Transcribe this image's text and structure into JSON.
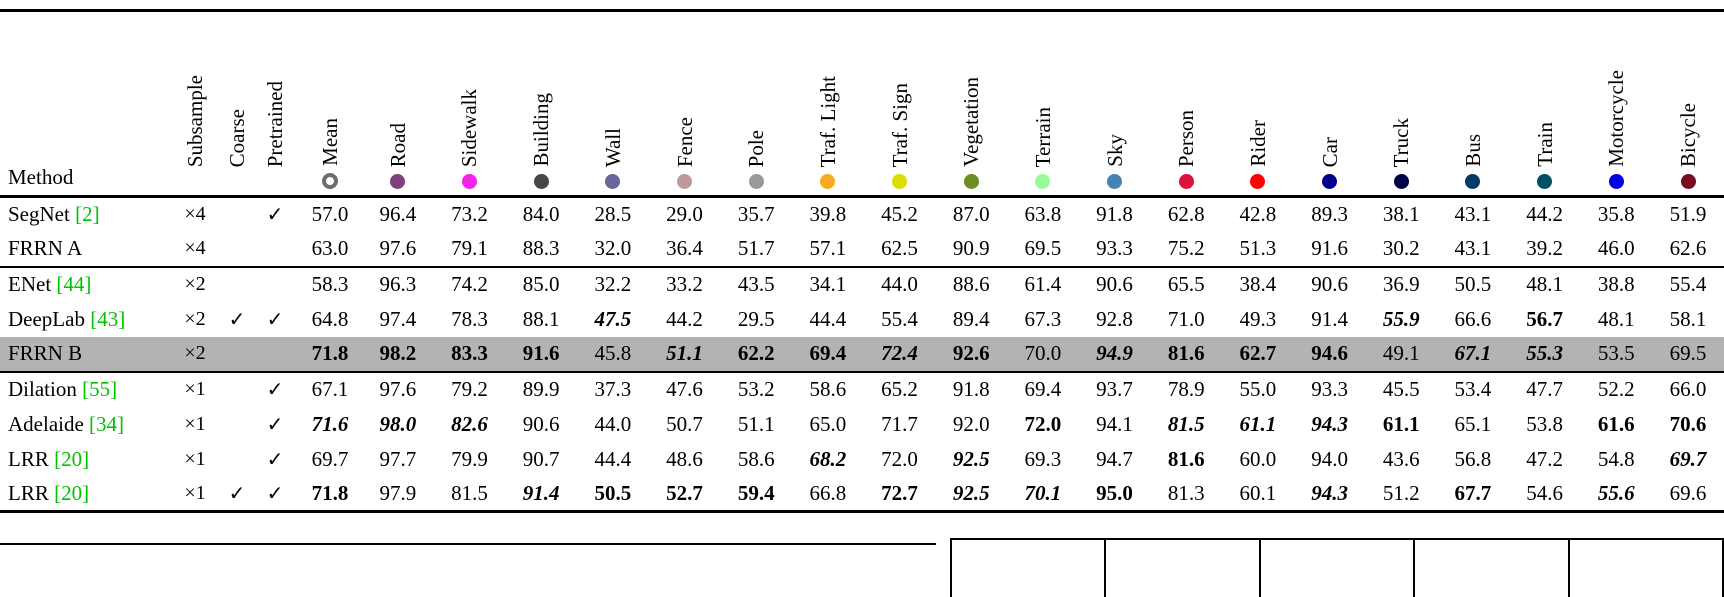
{
  "page": {
    "background": "#ffffff"
  },
  "table": {
    "method_header": "Method",
    "option_columns": [
      "Subsample",
      "Coarse",
      "Pretrained"
    ],
    "mean_column": {
      "label": "Mean",
      "icon": "ring"
    },
    "check_glyph": "✓",
    "colors": {
      "citation_green": "#00C300",
      "highlight_gray": "#b3b3b3",
      "rule_black": "#000000"
    },
    "class_columns": [
      {
        "label": "Road",
        "color": "#804080"
      },
      {
        "label": "Sidewalk",
        "color": "#F423E8"
      },
      {
        "label": "Building",
        "color": "#464646"
      },
      {
        "label": "Wall",
        "color": "#66669C"
      },
      {
        "label": "Fence",
        "color": "#BE9999"
      },
      {
        "label": "Pole",
        "color": "#999999"
      },
      {
        "label": "Traf. Light",
        "color": "#FAAA1E"
      },
      {
        "label": "Traf. Sign",
        "color": "#DCDC00"
      },
      {
        "label": "Vegetation",
        "color": "#6B8E23"
      },
      {
        "label": "Terrain",
        "color": "#98FB98"
      },
      {
        "label": "Sky",
        "color": "#4682B4"
      },
      {
        "label": "Person",
        "color": "#DC143C"
      },
      {
        "label": "Rider",
        "color": "#FF0000"
      },
      {
        "label": "Car",
        "color": "#00008E"
      },
      {
        "label": "Truck",
        "color": "#000046"
      },
      {
        "label": "Bus",
        "color": "#003C64"
      },
      {
        "label": "Train",
        "color": "#005064"
      },
      {
        "label": "Motorcycle",
        "color": "#0000E6"
      },
      {
        "label": "Bicycle",
        "color": "#770B20"
      }
    ],
    "rows": [
      {
        "method": "SegNet",
        "cite": "[2]",
        "subsample": "×4",
        "coarse": false,
        "pretrained": true,
        "highlight": false,
        "group_start": false,
        "mean": [
          "57.0",
          ""
        ],
        "scores": [
          [
            "96.4",
            ""
          ],
          [
            "73.2",
            ""
          ],
          [
            "84.0",
            ""
          ],
          [
            "28.5",
            ""
          ],
          [
            "29.0",
            ""
          ],
          [
            "35.7",
            ""
          ],
          [
            "39.8",
            ""
          ],
          [
            "45.2",
            ""
          ],
          [
            "87.0",
            ""
          ],
          [
            "63.8",
            ""
          ],
          [
            "91.8",
            ""
          ],
          [
            "62.8",
            ""
          ],
          [
            "42.8",
            ""
          ],
          [
            "89.3",
            ""
          ],
          [
            "38.1",
            ""
          ],
          [
            "43.1",
            ""
          ],
          [
            "44.2",
            ""
          ],
          [
            "35.8",
            ""
          ],
          [
            "51.9",
            ""
          ]
        ]
      },
      {
        "method": "FRRN A",
        "cite": "",
        "subsample": "×4",
        "coarse": false,
        "pretrained": false,
        "highlight": false,
        "group_start": false,
        "mean": [
          "63.0",
          ""
        ],
        "scores": [
          [
            "97.6",
            ""
          ],
          [
            "79.1",
            ""
          ],
          [
            "88.3",
            ""
          ],
          [
            "32.0",
            ""
          ],
          [
            "36.4",
            ""
          ],
          [
            "51.7",
            ""
          ],
          [
            "57.1",
            ""
          ],
          [
            "62.5",
            ""
          ],
          [
            "90.9",
            ""
          ],
          [
            "69.5",
            ""
          ],
          [
            "93.3",
            ""
          ],
          [
            "75.2",
            ""
          ],
          [
            "51.3",
            ""
          ],
          [
            "91.6",
            ""
          ],
          [
            "30.2",
            ""
          ],
          [
            "43.1",
            ""
          ],
          [
            "39.2",
            ""
          ],
          [
            "46.0",
            ""
          ],
          [
            "62.6",
            ""
          ]
        ]
      },
      {
        "method": "ENet",
        "cite": "[44]",
        "subsample": "×2",
        "coarse": false,
        "pretrained": false,
        "highlight": false,
        "group_start": true,
        "mean": [
          "58.3",
          ""
        ],
        "scores": [
          [
            "96.3",
            ""
          ],
          [
            "74.2",
            ""
          ],
          [
            "85.0",
            ""
          ],
          [
            "32.2",
            ""
          ],
          [
            "33.2",
            ""
          ],
          [
            "43.5",
            ""
          ],
          [
            "34.1",
            ""
          ],
          [
            "44.0",
            ""
          ],
          [
            "88.6",
            ""
          ],
          [
            "61.4",
            ""
          ],
          [
            "90.6",
            ""
          ],
          [
            "65.5",
            ""
          ],
          [
            "38.4",
            ""
          ],
          [
            "90.6",
            ""
          ],
          [
            "36.9",
            ""
          ],
          [
            "50.5",
            ""
          ],
          [
            "48.1",
            ""
          ],
          [
            "38.8",
            ""
          ],
          [
            "55.4",
            ""
          ]
        ]
      },
      {
        "method": "DeepLab",
        "cite": "[43]",
        "subsample": "×2",
        "coarse": true,
        "pretrained": true,
        "highlight": false,
        "group_start": false,
        "mean": [
          "64.8",
          ""
        ],
        "scores": [
          [
            "97.4",
            ""
          ],
          [
            "78.3",
            ""
          ],
          [
            "88.1",
            ""
          ],
          [
            "47.5",
            "bi"
          ],
          [
            "44.2",
            ""
          ],
          [
            "29.5",
            ""
          ],
          [
            "44.4",
            ""
          ],
          [
            "55.4",
            ""
          ],
          [
            "89.4",
            ""
          ],
          [
            "67.3",
            ""
          ],
          [
            "92.8",
            ""
          ],
          [
            "71.0",
            ""
          ],
          [
            "49.3",
            ""
          ],
          [
            "91.4",
            ""
          ],
          [
            "55.9",
            "bi"
          ],
          [
            "66.6",
            ""
          ],
          [
            "56.7",
            "b"
          ],
          [
            "48.1",
            ""
          ],
          [
            "58.1",
            ""
          ]
        ]
      },
      {
        "method": "FRRN B",
        "cite": "",
        "subsample": "×2",
        "coarse": false,
        "pretrained": false,
        "highlight": true,
        "group_start": false,
        "mean": [
          "71.8",
          "b"
        ],
        "scores": [
          [
            "98.2",
            "b"
          ],
          [
            "83.3",
            "b"
          ],
          [
            "91.6",
            "b"
          ],
          [
            "45.8",
            ""
          ],
          [
            "51.1",
            "bi"
          ],
          [
            "62.2",
            "b"
          ],
          [
            "69.4",
            "b"
          ],
          [
            "72.4",
            "bi"
          ],
          [
            "92.6",
            "b"
          ],
          [
            "70.0",
            ""
          ],
          [
            "94.9",
            "bi"
          ],
          [
            "81.6",
            "b"
          ],
          [
            "62.7",
            "b"
          ],
          [
            "94.6",
            "b"
          ],
          [
            "49.1",
            ""
          ],
          [
            "67.1",
            "bi"
          ],
          [
            "55.3",
            "bi"
          ],
          [
            "53.5",
            ""
          ],
          [
            "69.5",
            ""
          ]
        ]
      },
      {
        "method": "Dilation",
        "cite": "[55]",
        "subsample": "×1",
        "coarse": false,
        "pretrained": true,
        "highlight": false,
        "group_start": true,
        "mean": [
          "67.1",
          ""
        ],
        "scores": [
          [
            "97.6",
            ""
          ],
          [
            "79.2",
            ""
          ],
          [
            "89.9",
            ""
          ],
          [
            "37.3",
            ""
          ],
          [
            "47.6",
            ""
          ],
          [
            "53.2",
            ""
          ],
          [
            "58.6",
            ""
          ],
          [
            "65.2",
            ""
          ],
          [
            "91.8",
            ""
          ],
          [
            "69.4",
            ""
          ],
          [
            "93.7",
            ""
          ],
          [
            "78.9",
            ""
          ],
          [
            "55.0",
            ""
          ],
          [
            "93.3",
            ""
          ],
          [
            "45.5",
            ""
          ],
          [
            "53.4",
            ""
          ],
          [
            "47.7",
            ""
          ],
          [
            "52.2",
            ""
          ],
          [
            "66.0",
            ""
          ]
        ]
      },
      {
        "method": "Adelaide",
        "cite": "[34]",
        "subsample": "×1",
        "coarse": false,
        "pretrained": true,
        "highlight": false,
        "group_start": false,
        "mean": [
          "71.6",
          "bi"
        ],
        "scores": [
          [
            "98.0",
            "bi"
          ],
          [
            "82.6",
            "bi"
          ],
          [
            "90.6",
            ""
          ],
          [
            "44.0",
            ""
          ],
          [
            "50.7",
            ""
          ],
          [
            "51.1",
            ""
          ],
          [
            "65.0",
            ""
          ],
          [
            "71.7",
            ""
          ],
          [
            "92.0",
            ""
          ],
          [
            "72.0",
            "b"
          ],
          [
            "94.1",
            ""
          ],
          [
            "81.5",
            "bi"
          ],
          [
            "61.1",
            "bi"
          ],
          [
            "94.3",
            "bi"
          ],
          [
            "61.1",
            "b"
          ],
          [
            "65.1",
            ""
          ],
          [
            "53.8",
            ""
          ],
          [
            "61.6",
            "b"
          ],
          [
            "70.6",
            "b"
          ]
        ]
      },
      {
        "method": "LRR",
        "cite": "[20]",
        "subsample": "×1",
        "coarse": false,
        "pretrained": true,
        "highlight": false,
        "group_start": false,
        "mean": [
          "69.7",
          ""
        ],
        "scores": [
          [
            "97.7",
            ""
          ],
          [
            "79.9",
            ""
          ],
          [
            "90.7",
            ""
          ],
          [
            "44.4",
            ""
          ],
          [
            "48.6",
            ""
          ],
          [
            "58.6",
            ""
          ],
          [
            "68.2",
            "bi"
          ],
          [
            "72.0",
            ""
          ],
          [
            "92.5",
            "bi"
          ],
          [
            "69.3",
            ""
          ],
          [
            "94.7",
            ""
          ],
          [
            "81.6",
            "b"
          ],
          [
            "60.0",
            ""
          ],
          [
            "94.0",
            ""
          ],
          [
            "43.6",
            ""
          ],
          [
            "56.8",
            ""
          ],
          [
            "47.2",
            ""
          ],
          [
            "54.8",
            ""
          ],
          [
            "69.7",
            "bi"
          ]
        ]
      },
      {
        "method": "LRR",
        "cite": "[20]",
        "subsample": "×1",
        "coarse": true,
        "pretrained": true,
        "highlight": false,
        "group_start": false,
        "mean": [
          "71.8",
          "b"
        ],
        "scores": [
          [
            "97.9",
            ""
          ],
          [
            "81.5",
            ""
          ],
          [
            "91.4",
            "bi"
          ],
          [
            "50.5",
            "b"
          ],
          [
            "52.7",
            "b"
          ],
          [
            "59.4",
            "b"
          ],
          [
            "66.8",
            ""
          ],
          [
            "72.7",
            "b"
          ],
          [
            "92.5",
            "bi"
          ],
          [
            "70.1",
            "bi"
          ],
          [
            "95.0",
            "b"
          ],
          [
            "81.3",
            ""
          ],
          [
            "60.1",
            ""
          ],
          [
            "94.3",
            "bi"
          ],
          [
            "51.2",
            ""
          ],
          [
            "67.7",
            "b"
          ],
          [
            "54.6",
            ""
          ],
          [
            "55.6",
            "bi"
          ],
          [
            "69.6",
            ""
          ]
        ]
      }
    ]
  },
  "bottom_fragment": {
    "left_rule": true,
    "right_table_cells": 5
  }
}
